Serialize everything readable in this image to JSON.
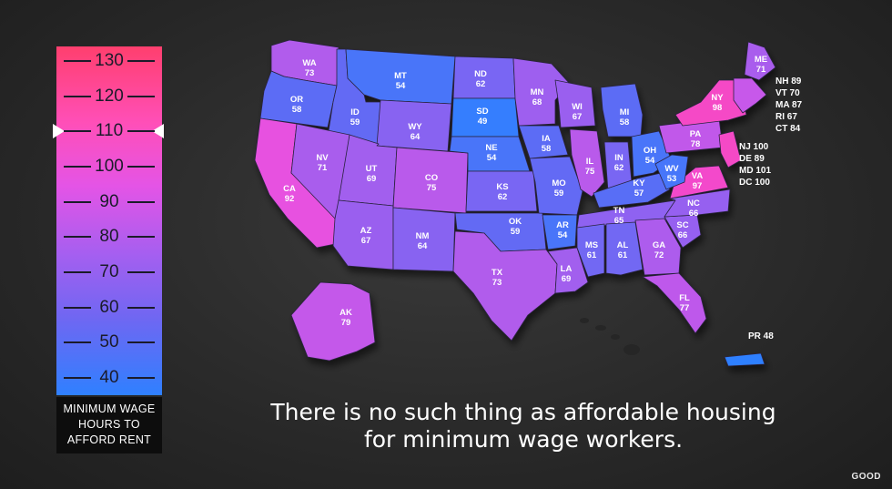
{
  "legend": {
    "ticks": [
      "130",
      "120",
      "110",
      "100",
      "90",
      "80",
      "70",
      "60",
      "50",
      "40"
    ],
    "caption": [
      "MINIMUM WAGE",
      "HOURS TO",
      "AFFORD RENT"
    ],
    "marker_value": 110,
    "scale_colors": {
      "low": "#2f80ff",
      "mid": "#a45ff0",
      "high": "#ff3f6e"
    }
  },
  "states": [
    {
      "abbr": "WA",
      "value": "73"
    },
    {
      "abbr": "OR",
      "value": "58"
    },
    {
      "abbr": "CA",
      "value": "92"
    },
    {
      "abbr": "ID",
      "value": "59"
    },
    {
      "abbr": "NV",
      "value": "71"
    },
    {
      "abbr": "MT",
      "value": "54"
    },
    {
      "abbr": "WY",
      "value": "64"
    },
    {
      "abbr": "UT",
      "value": "69"
    },
    {
      "abbr": "AZ",
      "value": "67"
    },
    {
      "abbr": "CO",
      "value": "75"
    },
    {
      "abbr": "NM",
      "value": "64"
    },
    {
      "abbr": "ND",
      "value": "62"
    },
    {
      "abbr": "SD",
      "value": "49"
    },
    {
      "abbr": "NE",
      "value": "54"
    },
    {
      "abbr": "KS",
      "value": "62"
    },
    {
      "abbr": "OK",
      "value": "59"
    },
    {
      "abbr": "TX",
      "value": "73"
    },
    {
      "abbr": "MN",
      "value": "68"
    },
    {
      "abbr": "IA",
      "value": "58"
    },
    {
      "abbr": "MO",
      "value": "59"
    },
    {
      "abbr": "AR",
      "value": "54"
    },
    {
      "abbr": "LA",
      "value": "69"
    },
    {
      "abbr": "WI",
      "value": "67"
    },
    {
      "abbr": "IL",
      "value": "75"
    },
    {
      "abbr": "MI",
      "value": "58"
    },
    {
      "abbr": "IN",
      "value": "62"
    },
    {
      "abbr": "OH",
      "value": "54"
    },
    {
      "abbr": "KY",
      "value": "57"
    },
    {
      "abbr": "TN",
      "value": "65"
    },
    {
      "abbr": "MS",
      "value": "61"
    },
    {
      "abbr": "AL",
      "value": "61"
    },
    {
      "abbr": "GA",
      "value": "72"
    },
    {
      "abbr": "FL",
      "value": "77"
    },
    {
      "abbr": "SC",
      "value": "66"
    },
    {
      "abbr": "NC",
      "value": "66"
    },
    {
      "abbr": "VA",
      "value": "97"
    },
    {
      "abbr": "WV",
      "value": "53"
    },
    {
      "abbr": "PA",
      "value": "78"
    },
    {
      "abbr": "NY",
      "value": "98"
    },
    {
      "abbr": "ME",
      "value": "71"
    },
    {
      "abbr": "AK",
      "value": "79"
    },
    {
      "abbr": "PR",
      "value": "48"
    }
  ],
  "side_labels": {
    "new_england": [
      "NH 89",
      "VT 70",
      "MA 87",
      "RI 67",
      "CT 84"
    ],
    "mid_atlantic": [
      "NJ 100",
      "DE 89",
      "MD 101",
      "DC 100"
    ],
    "pr": "PR 48"
  },
  "headline": [
    "There is no such thing as affordable housing",
    "for minimum wage workers."
  ],
  "brand": "GOOD"
}
